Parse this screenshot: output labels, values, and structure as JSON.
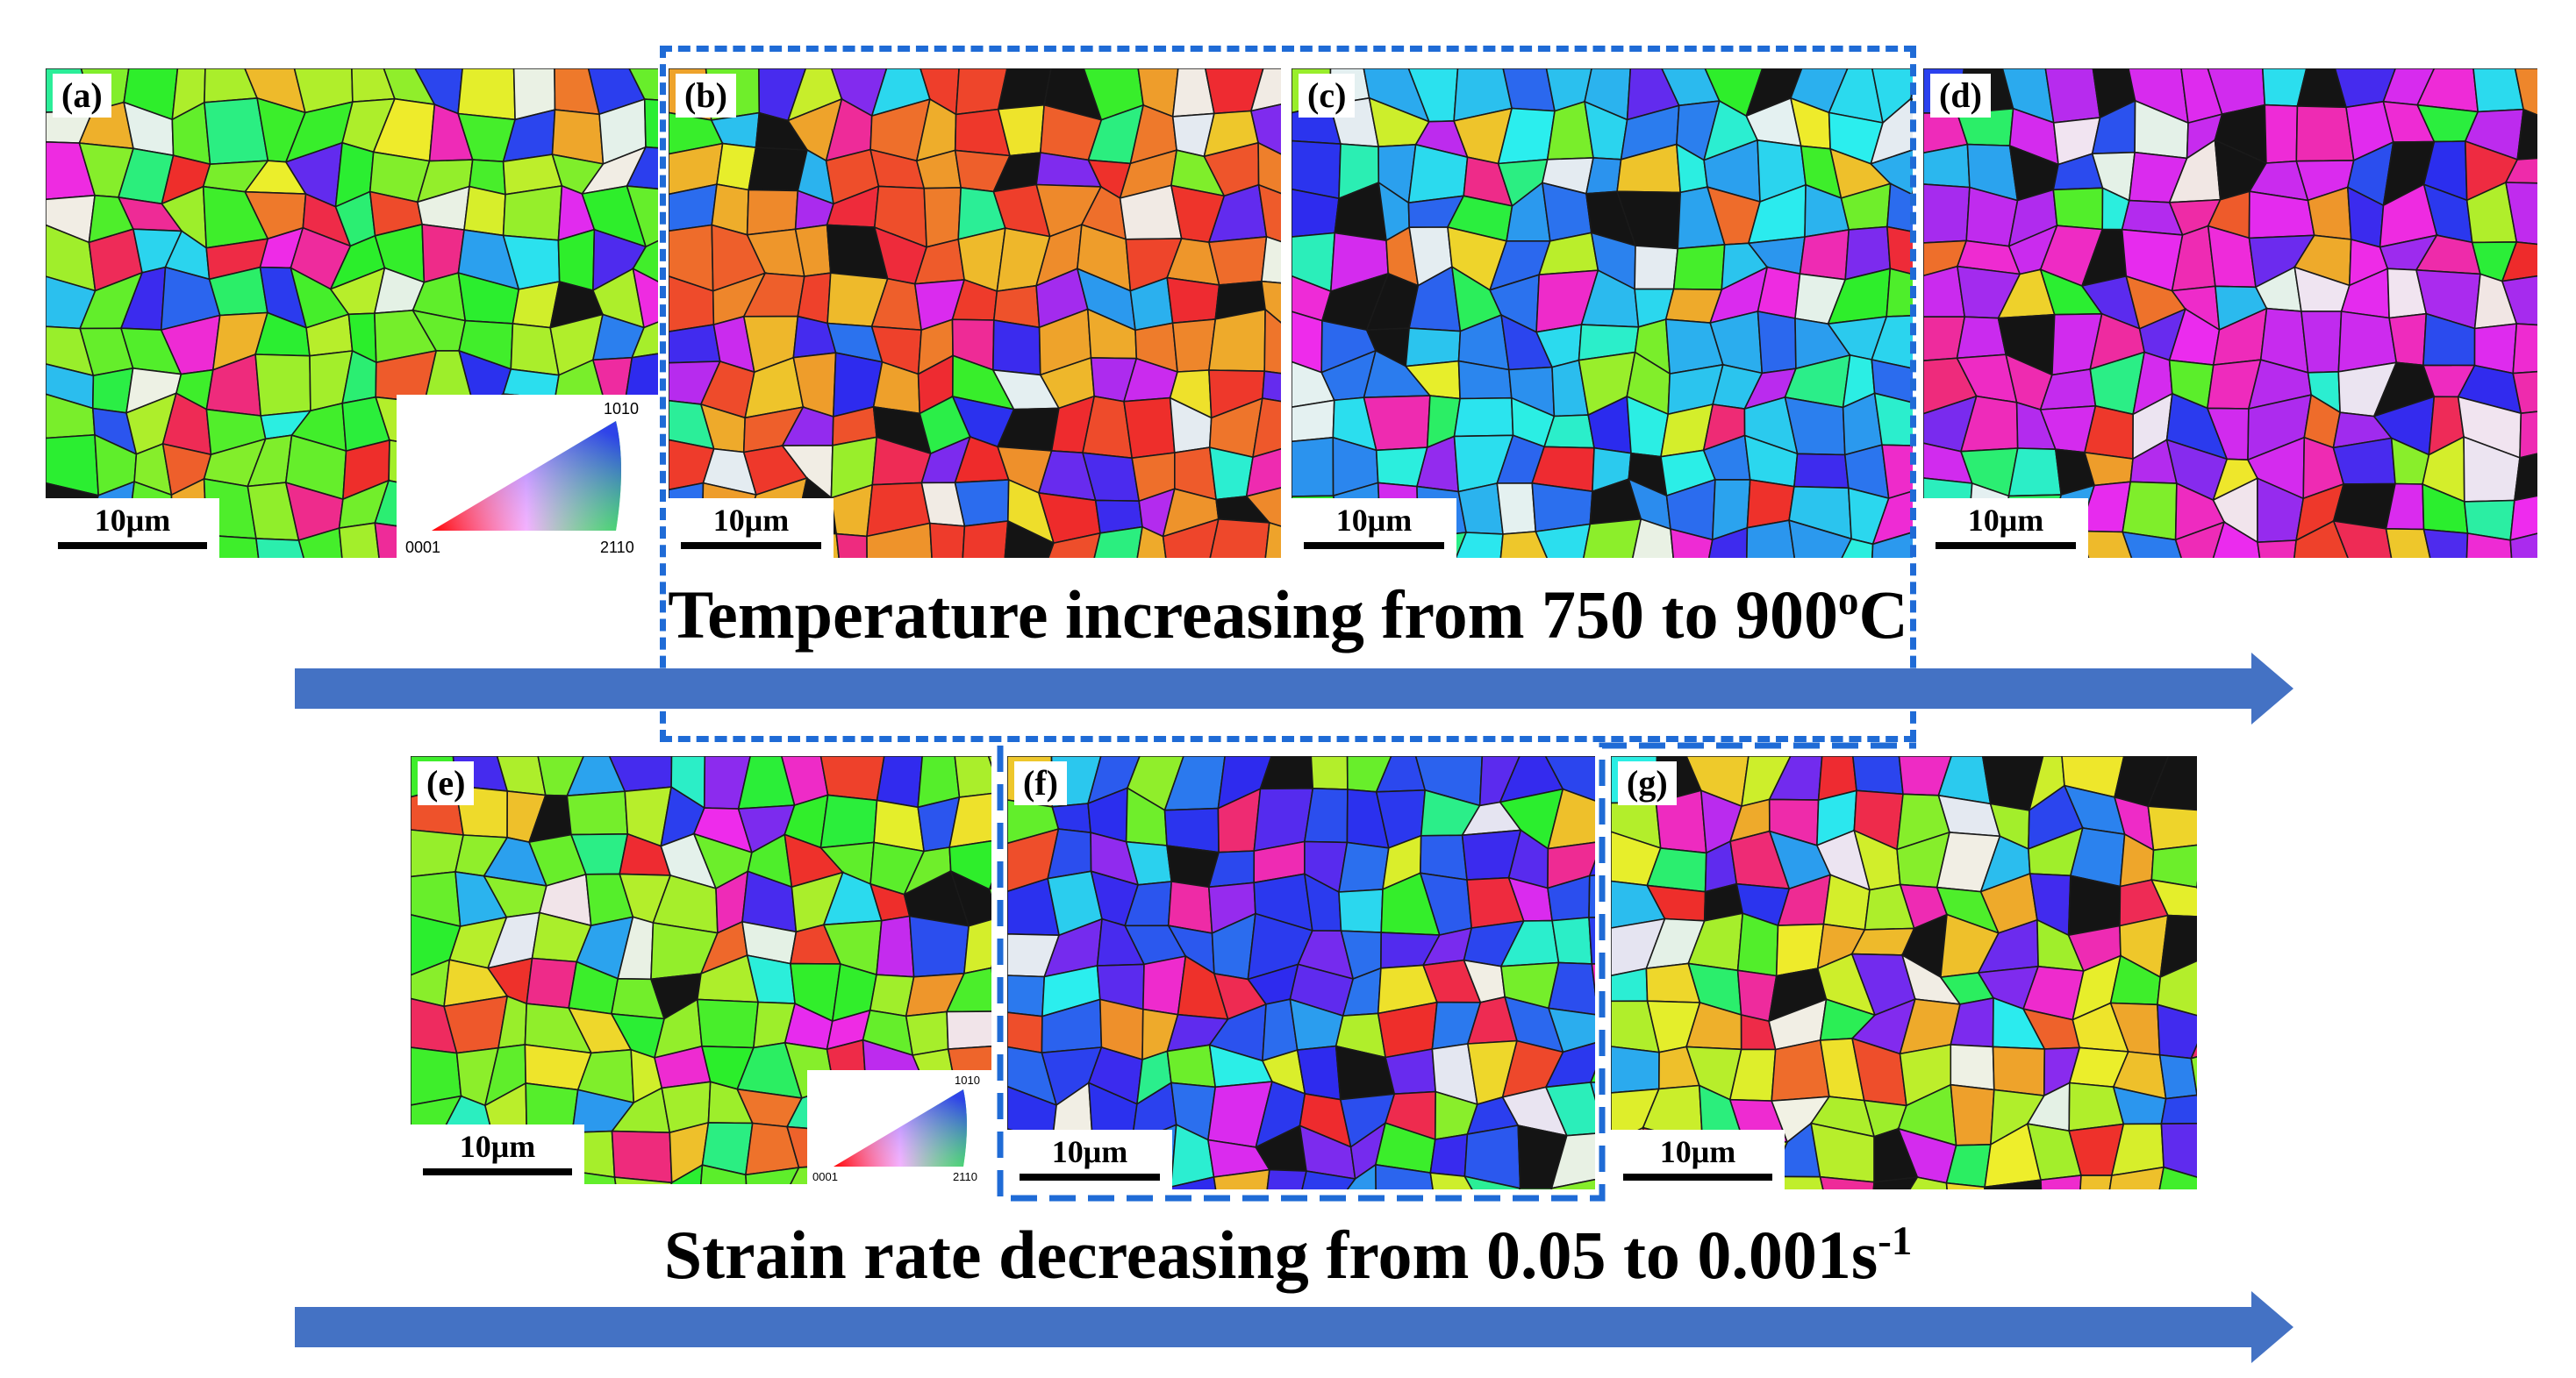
{
  "panels": [
    {
      "label": "(a)",
      "scale": "10μm",
      "hue": 100
    },
    {
      "label": "(b)",
      "scale": "10μm",
      "hue": 20
    },
    {
      "label": "(c)",
      "scale": "10μm",
      "hue": 200
    },
    {
      "label": "(d)",
      "scale": "10μm",
      "hue": 300
    },
    {
      "label": "(e)",
      "scale": "10μm",
      "hue": 100
    },
    {
      "label": "(f)",
      "scale": "10μm",
      "hue": 240
    },
    {
      "label": "(g)",
      "scale": "10μm",
      "hue": 60
    }
  ],
  "ipf_legend": {
    "corner_origin": "0001",
    "corner_right": "2110",
    "corner_top": "1010"
  },
  "caption_temperature": {
    "text": "Temperature increasing from 750 to 900",
    "sup": "o",
    "suffix": "C"
  },
  "caption_strain": {
    "text": "Strain rate decreasing from 0.05 to 0.001s",
    "sup": "-1"
  },
  "colors": {
    "arrow": "#4472c4",
    "dash": "#1f6bd6",
    "grain_boundary": "#1a1a1a"
  }
}
